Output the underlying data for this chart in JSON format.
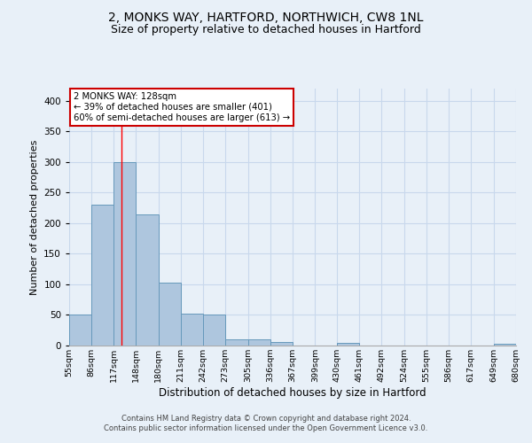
{
  "title1": "2, MONKS WAY, HARTFORD, NORTHWICH, CW8 1NL",
  "title2": "Size of property relative to detached houses in Hartford",
  "xlabel": "Distribution of detached houses by size in Hartford",
  "ylabel": "Number of detached properties",
  "bin_edges": [
    55,
    86,
    117,
    148,
    180,
    211,
    242,
    273,
    305,
    336,
    367,
    399,
    430,
    461,
    492,
    524,
    555,
    586,
    617,
    649,
    680
  ],
  "bin_labels": [
    "55sqm",
    "86sqm",
    "117sqm",
    "148sqm",
    "180sqm",
    "211sqm",
    "242sqm",
    "273sqm",
    "305sqm",
    "336sqm",
    "367sqm",
    "399sqm",
    "430sqm",
    "461sqm",
    "492sqm",
    "524sqm",
    "555sqm",
    "586sqm",
    "617sqm",
    "649sqm",
    "680sqm"
  ],
  "bar_heights": [
    50,
    230,
    300,
    215,
    103,
    52,
    50,
    10,
    10,
    6,
    0,
    0,
    4,
    0,
    0,
    0,
    0,
    0,
    0,
    3
  ],
  "bar_color": "#aec6de",
  "bar_edgecolor": "#6699bb",
  "grid_color": "#c8d8ec",
  "bg_color": "#e8f0f8",
  "red_line_x": 128,
  "annotation_title": "2 MONKS WAY: 128sqm",
  "annotation_line1": "← 39% of detached houses are smaller (401)",
  "annotation_line2": "60% of semi-detached houses are larger (613) →",
  "annotation_box_color": "#ffffff",
  "annotation_border_color": "#cc0000",
  "footer1": "Contains HM Land Registry data © Crown copyright and database right 2024.",
  "footer2": "Contains public sector information licensed under the Open Government Licence v3.0.",
  "ylim": [
    0,
    420
  ],
  "yticks": [
    0,
    50,
    100,
    150,
    200,
    250,
    300,
    350,
    400
  ],
  "title1_fontsize": 10,
  "title2_fontsize": 9,
  "ylabel_fontsize": 8,
  "xlabel_fontsize": 8.5
}
